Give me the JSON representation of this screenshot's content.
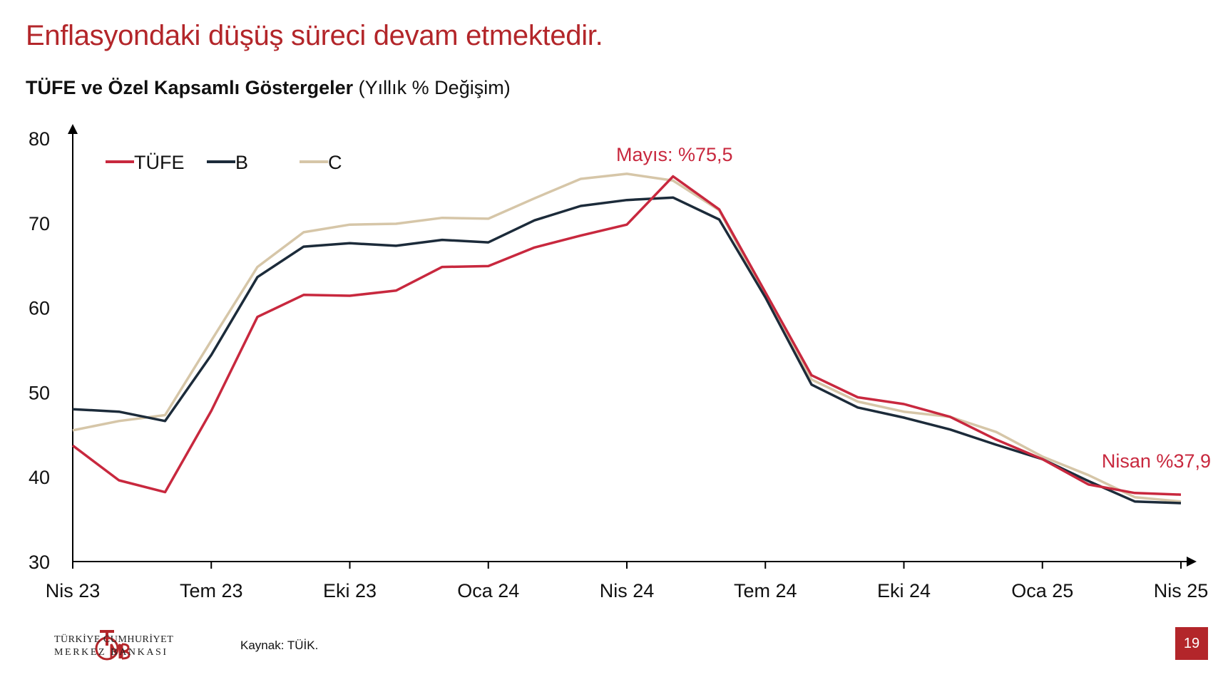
{
  "slide": {
    "title": "Enflasyondaki düşüş süreci devam etmektedir.",
    "subtitle_bold": "TÜFE ve Özel Kapsamlı Göstergeler",
    "subtitle_normal": " (Yıllık % Değişim)",
    "source": "Kaynak: TÜİK.",
    "page_number": "19",
    "bank_name_line1": "TÜRKİYE CUMHURİYET",
    "bank_name_line2": "MERKEZ BANKASI",
    "logo_text": "TCMB"
  },
  "chart_data": {
    "type": "line",
    "title": "TÜFE ve Özel Kapsamlı Göstergeler (Yıllık % Değişim)",
    "ylim": [
      30,
      80
    ],
    "yticks": [
      30,
      40,
      50,
      60,
      70,
      80
    ],
    "x": [
      "Nis 23",
      "May 23",
      "Haz 23",
      "Tem 23",
      "Ağu 23",
      "Eyl 23",
      "Eki 23",
      "Kas 23",
      "Ara 23",
      "Oca 24",
      "Şub 24",
      "Mar 24",
      "Nis 24",
      "May 24",
      "Haz 24",
      "Tem 24",
      "Ağu 24",
      "Eyl 24",
      "Eki 24",
      "Kas 24",
      "Ara 24",
      "Oca 25",
      "Şub 25",
      "Mar 25",
      "Nis 25"
    ],
    "xtick_labels": [
      "Nis 23",
      "Tem 23",
      "Eki 23",
      "Oca 24",
      "Nis 24",
      "Tem 24",
      "Eki 24",
      "Oca 25",
      "Nis 25"
    ],
    "xtick_indices": [
      0,
      3,
      6,
      9,
      12,
      15,
      18,
      21,
      24
    ],
    "legend_position": "top-left",
    "grid": false,
    "series": [
      {
        "name": "TÜFE",
        "color": "#c8283e",
        "values": [
          43.7,
          39.6,
          38.2,
          47.8,
          58.9,
          61.5,
          61.4,
          62.0,
          64.8,
          64.9,
          67.1,
          68.5,
          69.8,
          75.5,
          71.6,
          61.8,
          52.0,
          49.4,
          48.6,
          47.1,
          44.4,
          42.1,
          39.1,
          38.1,
          37.9
        ]
      },
      {
        "name": "B",
        "color": "#1c2b3a",
        "values": [
          48.0,
          47.7,
          46.6,
          54.4,
          63.6,
          67.2,
          67.6,
          67.3,
          68.0,
          67.7,
          70.3,
          72.0,
          72.7,
          73.0,
          70.4,
          61.2,
          50.9,
          48.2,
          47.0,
          45.6,
          43.8,
          42.1,
          39.5,
          37.1,
          36.9
        ]
      },
      {
        "name": "C",
        "color": "#d6c6a8",
        "values": [
          45.5,
          46.6,
          47.3,
          56.1,
          64.8,
          68.9,
          69.8,
          69.9,
          70.6,
          70.5,
          72.9,
          75.2,
          75.8,
          75.0,
          71.5,
          61.3,
          51.5,
          48.9,
          47.7,
          47.1,
          45.3,
          42.4,
          40.2,
          37.6,
          37.1
        ]
      }
    ],
    "annotations": [
      {
        "text": "Mayıs: %75,5",
        "series": "TÜFE",
        "index": 13
      },
      {
        "text": "Nisan %37,9",
        "series": "TÜFE",
        "index": 24
      }
    ]
  }
}
